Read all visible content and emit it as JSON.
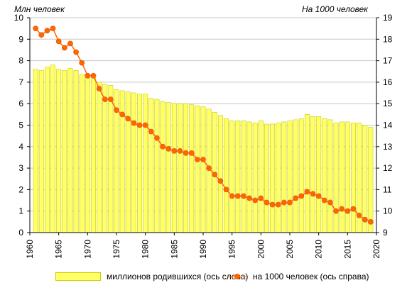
{
  "chart_data": {
    "type": "bar+line",
    "left_axis_title": "Млн  человек",
    "right_axis_title": "На 1000 человек",
    "x_ticks": [
      "1960",
      "1965",
      "1970",
      "1975",
      "1980",
      "1985",
      "1990",
      "1995",
      "2000",
      "2005",
      "2010",
      "2015",
      "2020"
    ],
    "y_left_ticks": [
      "0",
      "1",
      "2",
      "3",
      "4",
      "5",
      "6",
      "7",
      "8",
      "9",
      "10"
    ],
    "y_right_ticks": [
      "9",
      "10",
      "11",
      "12",
      "13",
      "14",
      "15",
      "16",
      "17",
      "18",
      "19"
    ],
    "ylim_left": [
      0,
      10
    ],
    "ylim_right": [
      9,
      19
    ],
    "xlim": [
      1960,
      2020
    ],
    "grid": "horizontal",
    "x": [
      1961,
      1962,
      1963,
      1964,
      1965,
      1966,
      1967,
      1968,
      1969,
      1970,
      1971,
      1972,
      1973,
      1974,
      1975,
      1976,
      1977,
      1978,
      1979,
      1980,
      1981,
      1982,
      1983,
      1984,
      1985,
      1986,
      1987,
      1988,
      1989,
      1990,
      1991,
      1992,
      1993,
      1994,
      1995,
      1996,
      1997,
      1998,
      1999,
      2000,
      2001,
      2002,
      2003,
      2004,
      2005,
      2006,
      2007,
      2008,
      2009,
      2010,
      2011,
      2012,
      2013,
      2014,
      2015,
      2016,
      2017,
      2018,
      2019
    ],
    "series": [
      {
        "name": "миллионов  родившихся (ось слева)",
        "axis": "left",
        "render": "bar",
        "color": "#ffff66",
        "values": [
          7.6,
          7.55,
          7.7,
          7.8,
          7.6,
          7.55,
          7.65,
          7.55,
          7.35,
          7.3,
          7.2,
          7.0,
          6.9,
          6.85,
          6.65,
          6.6,
          6.55,
          6.5,
          6.45,
          6.45,
          6.25,
          6.2,
          6.1,
          6.05,
          6.0,
          6.0,
          6.0,
          5.95,
          5.9,
          5.85,
          5.75,
          5.6,
          5.45,
          5.3,
          5.2,
          5.2,
          5.2,
          5.15,
          5.1,
          5.2,
          5.05,
          5.05,
          5.1,
          5.15,
          5.2,
          5.25,
          5.3,
          5.5,
          5.4,
          5.4,
          5.3,
          5.25,
          5.1,
          5.15,
          5.15,
          5.1,
          5.1,
          5.0,
          4.9
        ]
      },
      {
        "name": "на 1000 человек (ось справа)",
        "axis": "right",
        "render": "line",
        "color": "#ff6600",
        "values": [
          18.5,
          18.2,
          18.4,
          18.5,
          17.9,
          17.6,
          17.8,
          17.4,
          16.9,
          16.3,
          16.3,
          15.7,
          15.2,
          15.2,
          14.7,
          14.5,
          14.3,
          14.1,
          14.0,
          14.0,
          13.7,
          13.4,
          13.0,
          12.9,
          12.8,
          12.8,
          12.7,
          12.7,
          12.4,
          12.4,
          12.0,
          11.7,
          11.4,
          11.0,
          10.7,
          10.7,
          10.7,
          10.6,
          10.5,
          10.6,
          10.4,
          10.3,
          10.3,
          10.4,
          10.4,
          10.6,
          10.7,
          10.9,
          10.8,
          10.7,
          10.5,
          10.4,
          10.0,
          10.1,
          10.0,
          10.1,
          9.8,
          9.6,
          9.5
        ]
      }
    ]
  }
}
